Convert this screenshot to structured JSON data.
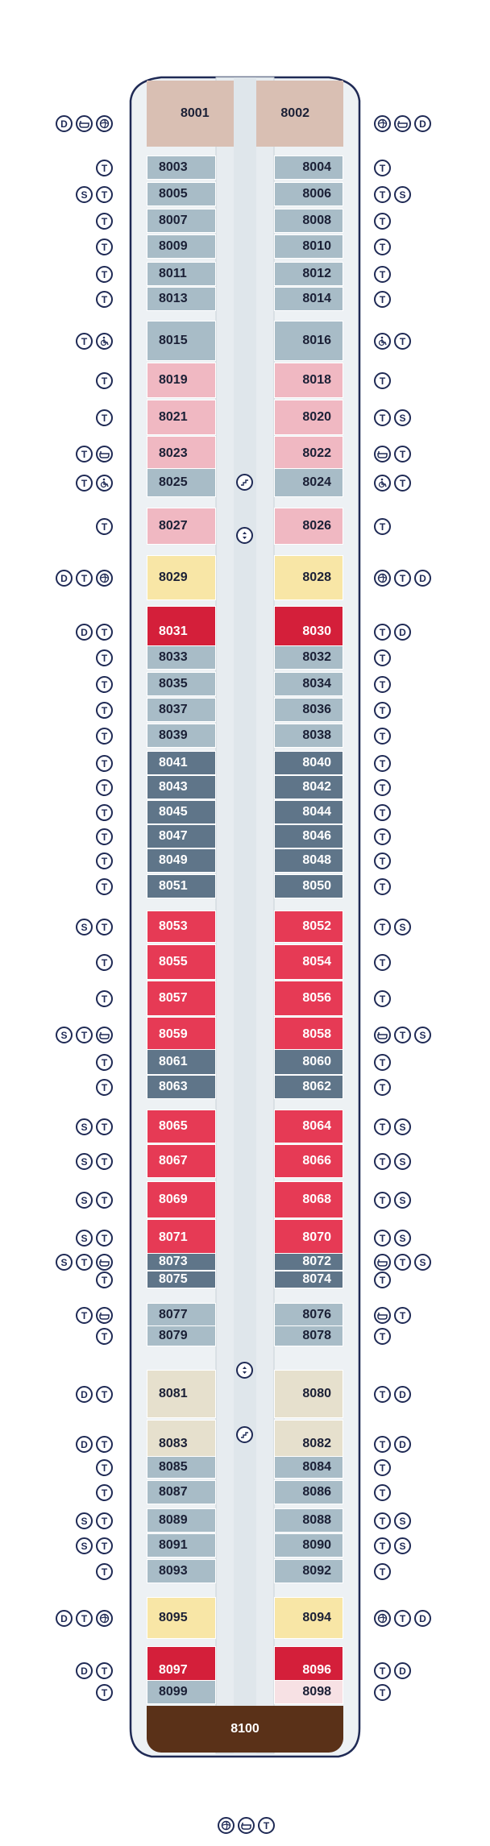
{
  "legend": {
    "T": "T",
    "S": "S",
    "D": "D"
  },
  "colors": {
    "bow": "#d9bfb3",
    "light_blue": "#a8bcc7",
    "pink": "#f0b8c2",
    "yellow": "#f8e6a6",
    "dark_red": "#d41f3a",
    "red": "#e63a55",
    "slate": "#5f7589",
    "beige": "#e6e0cd",
    "very_light_pink": "#f7e1e4",
    "brown": "#5a3118",
    "corridor": "#e7ecf0",
    "hull_fill": "#edf1f4",
    "hull_stroke": "#1f2a55"
  },
  "forward_suites": {
    "left": "8001",
    "right": "8002"
  },
  "aft_suite": "8100",
  "rows": [
    {
      "l": "8003",
      "r": "8004",
      "c": "light_blue",
      "ls": [
        "T"
      ],
      "rs": [
        "T"
      ]
    },
    {
      "l": "8005",
      "r": "8006",
      "c": "light_blue",
      "ls": [
        "S",
        "T"
      ],
      "rs": [
        "T",
        "S"
      ]
    },
    {
      "l": "8007",
      "r": "8008",
      "c": "light_blue",
      "ls": [
        "T"
      ],
      "rs": [
        "T"
      ]
    },
    {
      "l": "8009",
      "r": "8010",
      "c": "light_blue",
      "ls": [
        "T"
      ],
      "rs": [
        "T"
      ]
    },
    {
      "l": "8011",
      "r": "8012",
      "c": "light_blue",
      "ls": [
        "T"
      ],
      "rs": [
        "T"
      ]
    },
    {
      "l": "8013",
      "r": "8014",
      "c": "light_blue",
      "ls": [
        "T"
      ],
      "rs": [
        "T"
      ]
    },
    {
      "l": "8015",
      "r": "8016",
      "c": "light_blue",
      "ls": [
        "T",
        "wheelchair-icon"
      ],
      "rs": [
        "wheelchair-icon",
        "T"
      ]
    },
    {
      "l": "8019",
      "r": "8018",
      "c": "pink",
      "ls": [
        "T"
      ],
      "rs": [
        "T"
      ]
    },
    {
      "l": "8021",
      "r": "8020",
      "c": "pink",
      "ls": [
        "T"
      ],
      "rs": [
        "T",
        "S"
      ]
    },
    {
      "l": "8023",
      "r": "8022",
      "c": "pink",
      "ls": [
        "T",
        "bathtub-icon"
      ],
      "rs": [
        "bathtub-icon",
        "T"
      ]
    },
    {
      "l": "8025",
      "r": "8024",
      "c": "light_blue",
      "ls": [
        "T",
        "wheelchair-icon"
      ],
      "rs": [
        "wheelchair-icon",
        "T"
      ]
    },
    {
      "l": "8027",
      "r": "8026",
      "c": "pink",
      "ls": [
        "T"
      ],
      "rs": [
        "T"
      ]
    },
    {
      "l": "8029",
      "r": "8028",
      "c": "yellow",
      "ls": [
        "D",
        "T",
        "spa-icon"
      ],
      "rs": [
        "spa-icon",
        "T",
        "D"
      ]
    },
    {
      "l": "8031",
      "r": "8030",
      "c": "dark_red",
      "ls": [
        "D",
        "T"
      ],
      "rs": [
        "T",
        "D"
      ]
    },
    {
      "l": "8033",
      "r": "8032",
      "c": "light_blue",
      "ls": [
        "T"
      ],
      "rs": [
        "T"
      ]
    },
    {
      "l": "8035",
      "r": "8034",
      "c": "light_blue",
      "ls": [
        "T"
      ],
      "rs": [
        "T"
      ]
    },
    {
      "l": "8037",
      "r": "8036",
      "c": "light_blue",
      "ls": [
        "T"
      ],
      "rs": [
        "T"
      ]
    },
    {
      "l": "8039",
      "r": "8038",
      "c": "light_blue",
      "ls": [
        "T"
      ],
      "rs": [
        "T"
      ]
    },
    {
      "l": "8041",
      "r": "8040",
      "c": "slate",
      "ls": [
        "T"
      ],
      "rs": [
        "T"
      ]
    },
    {
      "l": "8043",
      "r": "8042",
      "c": "slate",
      "ls": [
        "T"
      ],
      "rs": [
        "T"
      ]
    },
    {
      "l": "8045",
      "r": "8044",
      "c": "slate",
      "ls": [
        "T"
      ],
      "rs": [
        "T"
      ]
    },
    {
      "l": "8047",
      "r": "8046",
      "c": "slate",
      "ls": [
        "T"
      ],
      "rs": [
        "T"
      ]
    },
    {
      "l": "8049",
      "r": "8048",
      "c": "slate",
      "ls": [
        "T"
      ],
      "rs": [
        "T"
      ]
    },
    {
      "l": "8051",
      "r": "8050",
      "c": "slate",
      "ls": [
        "T"
      ],
      "rs": [
        "T"
      ]
    },
    {
      "l": "8053",
      "r": "8052",
      "c": "red",
      "ls": [
        "S",
        "T"
      ],
      "rs": [
        "T",
        "S"
      ]
    },
    {
      "l": "8055",
      "r": "8054",
      "c": "red",
      "ls": [
        "T"
      ],
      "rs": [
        "T"
      ]
    },
    {
      "l": "8057",
      "r": "8056",
      "c": "red",
      "ls": [
        "T"
      ],
      "rs": [
        "T"
      ]
    },
    {
      "l": "8059",
      "r": "8058",
      "c": "red",
      "ls": [
        "S",
        "T",
        "bathtub-icon"
      ],
      "rs": [
        "bathtub-icon",
        "T",
        "S"
      ]
    },
    {
      "l": "8061",
      "r": "8060",
      "c": "slate",
      "ls": [
        "T"
      ],
      "rs": [
        "T"
      ]
    },
    {
      "l": "8063",
      "r": "8062",
      "c": "slate",
      "ls": [
        "T"
      ],
      "rs": [
        "T"
      ]
    },
    {
      "l": "8065",
      "r": "8064",
      "c": "red",
      "ls": [
        "S",
        "T"
      ],
      "rs": [
        "T",
        "S"
      ]
    },
    {
      "l": "8067",
      "r": "8066",
      "c": "red",
      "ls": [
        "S",
        "T"
      ],
      "rs": [
        "T",
        "S"
      ]
    },
    {
      "l": "8069",
      "r": "8068",
      "c": "red",
      "ls": [
        "S",
        "T"
      ],
      "rs": [
        "T",
        "S"
      ]
    },
    {
      "l": "8071",
      "r": "8070",
      "c": "red",
      "ls": [
        "S",
        "T"
      ],
      "rs": [
        "T",
        "S"
      ]
    },
    {
      "l": "8073",
      "r": "8072",
      "c": "slate",
      "ls": [
        "S",
        "T",
        "bathtub-icon"
      ],
      "rs": [
        "bathtub-icon",
        "T",
        "S"
      ]
    },
    {
      "l": "8075",
      "r": "8074",
      "c": "slate",
      "ls": [
        "T"
      ],
      "rs": [
        "T"
      ]
    },
    {
      "l": "8077",
      "r": "8076",
      "c": "light_blue",
      "ls": [
        "T",
        "bathtub-icon"
      ],
      "rs": [
        "bathtub-icon",
        "T"
      ]
    },
    {
      "l": "8079",
      "r": "8078",
      "c": "light_blue",
      "ls": [
        "T"
      ],
      "rs": [
        "T"
      ]
    },
    {
      "l": "8081",
      "r": "8080",
      "c": "beige",
      "ls": [
        "D",
        "T"
      ],
      "rs": [
        "T",
        "D"
      ]
    },
    {
      "l": "8083",
      "r": "8082",
      "c": "beige",
      "ls": [
        "D",
        "T"
      ],
      "rs": [
        "T",
        "D"
      ]
    },
    {
      "l": "8085",
      "r": "8084",
      "c": "light_blue",
      "ls": [
        "T"
      ],
      "rs": [
        "T"
      ]
    },
    {
      "l": "8087",
      "r": "8086",
      "c": "light_blue",
      "ls": [
        "T"
      ],
      "rs": [
        "T"
      ]
    },
    {
      "l": "8089",
      "r": "8088",
      "c": "light_blue",
      "ls": [
        "S",
        "T"
      ],
      "rs": [
        "T",
        "S"
      ]
    },
    {
      "l": "8091",
      "r": "8090",
      "c": "light_blue",
      "ls": [
        "S",
        "T"
      ],
      "rs": [
        "T",
        "S"
      ]
    },
    {
      "l": "8093",
      "r": "8092",
      "c": "light_blue",
      "ls": [
        "T"
      ],
      "rs": [
        "T"
      ]
    },
    {
      "l": "8095",
      "r": "8094",
      "c": "yellow",
      "ls": [
        "D",
        "T",
        "spa-icon"
      ],
      "rs": [
        "spa-icon",
        "T",
        "D"
      ]
    },
    {
      "l": "8097",
      "r": "8096",
      "c": "dark_red",
      "ls": [
        "D",
        "T"
      ],
      "rs": [
        "T",
        "D"
      ]
    },
    {
      "l": "8099",
      "r": "8098",
      "c": "light_blue",
      "ls": [
        "T"
      ],
      "rs": [
        "T"
      ],
      "rc": "very_light_pink"
    }
  ],
  "bow_symbols": {
    "left": [
      "D",
      "bathtub-icon",
      "spa-icon"
    ],
    "right": [
      "spa-icon",
      "bathtub-icon",
      "D"
    ]
  },
  "stern_symbols": [
    "spa-icon",
    "bathtub-icon",
    "T"
  ]
}
